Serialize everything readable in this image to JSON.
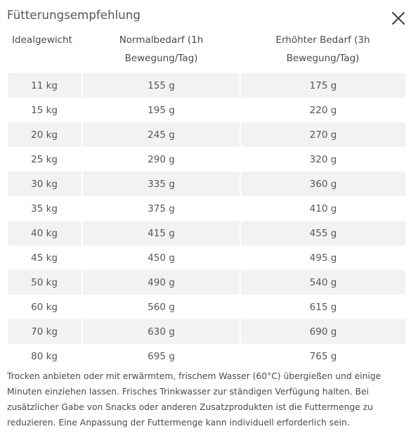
{
  "dialog": {
    "title": "Fütterungsempfehlung",
    "close_icon": "close-icon"
  },
  "table": {
    "headers": [
      "Idealgewicht",
      "Normalbedarf (1h Bewegung/Tag)",
      "Erhöhter Bedarf (3h Bewegung/Tag)"
    ],
    "rows": [
      [
        "11 kg",
        "155 g",
        "175 g"
      ],
      [
        "15 kg",
        "195 g",
        "220 g"
      ],
      [
        "20 kg",
        "245 g",
        "270 g"
      ],
      [
        "25 kg",
        "290 g",
        "320 g"
      ],
      [
        "30 kg",
        "335 g",
        "360 g"
      ],
      [
        "35 kg",
        "375 g",
        "410 g"
      ],
      [
        "40 kg",
        "415 g",
        "455 g"
      ],
      [
        "45 kg",
        "450 g",
        "495 g"
      ],
      [
        "50 kg",
        "490 g",
        "540 g"
      ],
      [
        "60 kg",
        "560 g",
        "615 g"
      ],
      [
        "70 kg",
        "630 g",
        "690 g"
      ],
      [
        "80 kg",
        "695 g",
        "765 g"
      ]
    ],
    "stripe_color": "#f2f2f2"
  },
  "note": "Trocken anbieten oder mit erwärmtem, frischem Wasser (60°C) übergießen und einige Minuten einziehen lassen. Frisches Trinkwasser zur ständigen Verfügung halten. Bei zusätzlicher Gabe von Snacks oder anderen Zusatzprodukten ist die Futtermenge zu reduzieren. Eine Anpassung der Futtermenge kann individuell erforderlich sein."
}
